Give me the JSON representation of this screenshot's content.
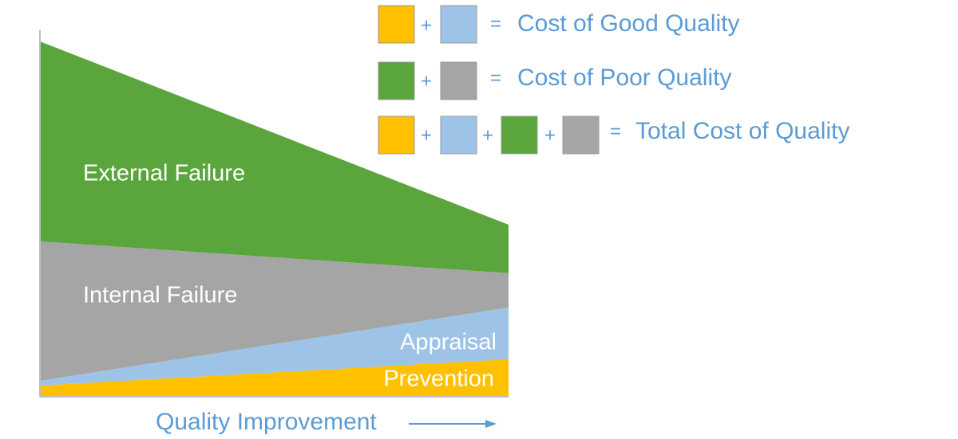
{
  "diagram": {
    "areas": [
      "External Failure",
      "Internal Failure",
      "Appraisal",
      "Prevention"
    ],
    "axis_label": "Quality Improvement",
    "legend": {
      "rows": [
        {
          "operators": [
            "+"
          ],
          "equals": "=",
          "label": "Cost of Good Quality"
        },
        {
          "operators": [
            "+"
          ],
          "equals": "=",
          "label": "Cost of Poor Quality"
        },
        {
          "operators": [
            "+",
            "+",
            "+"
          ],
          "equals": "=",
          "label": "Total Cost of Quality"
        }
      ]
    }
  }
}
